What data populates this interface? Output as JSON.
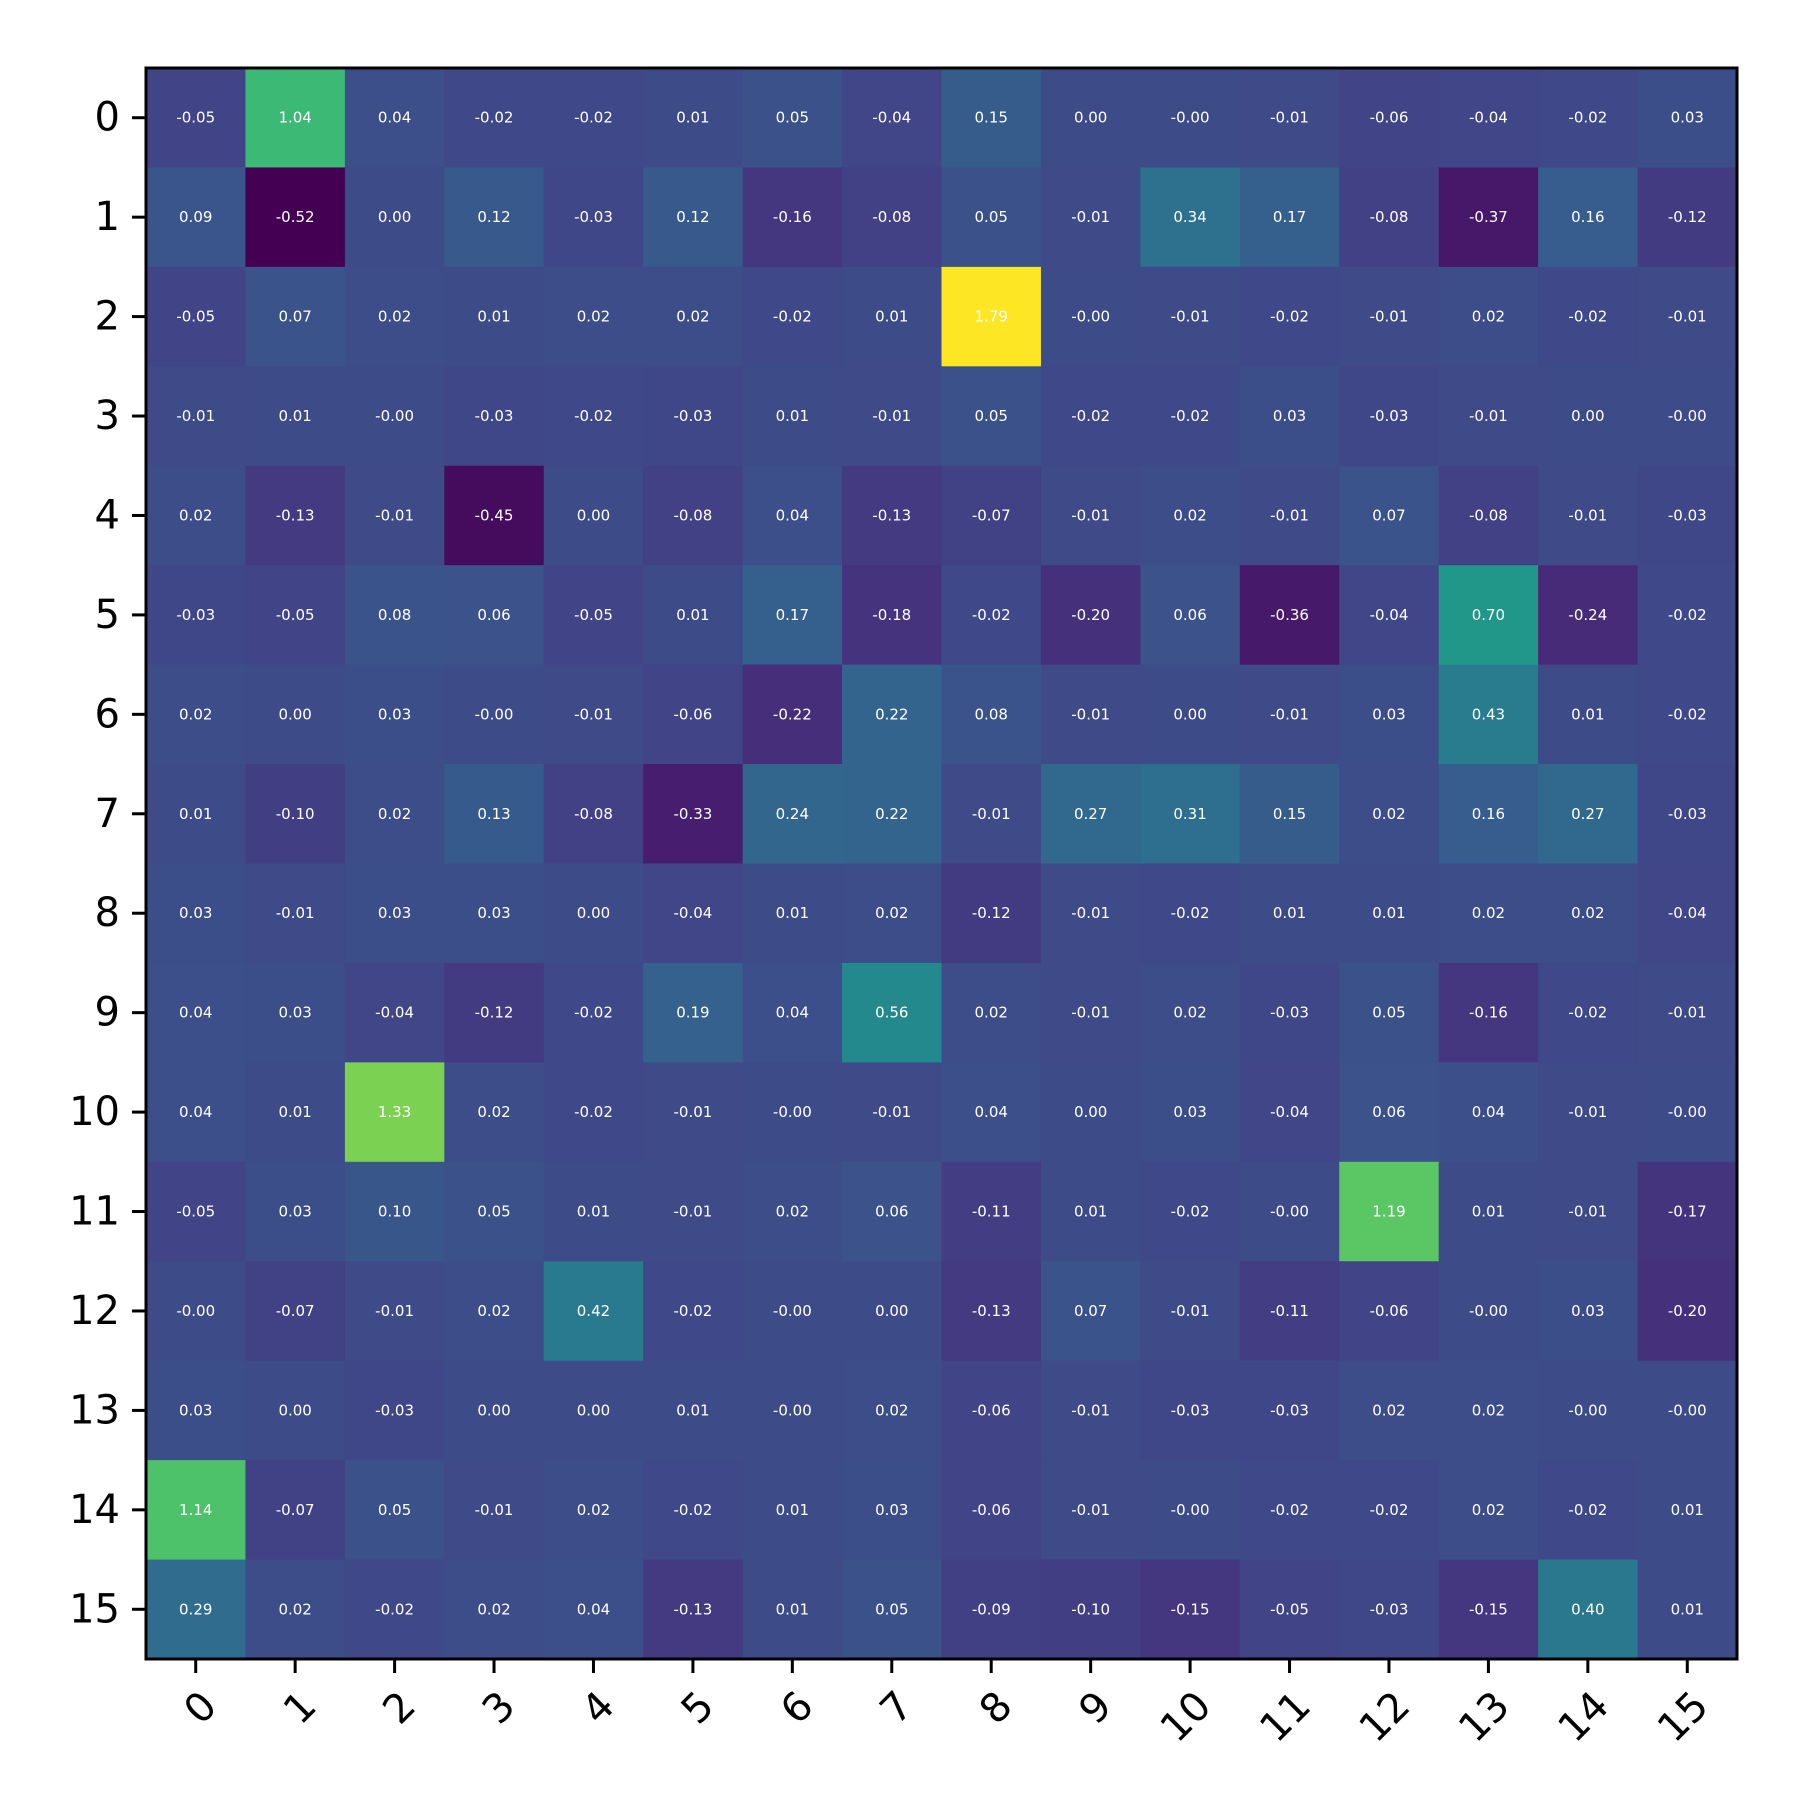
{
  "chart_data": {
    "type": "heatmap",
    "title": "",
    "xlabel": "",
    "ylabel": "",
    "x_categories": [
      "0",
      "1",
      "2",
      "3",
      "4",
      "5",
      "6",
      "7",
      "8",
      "9",
      "10",
      "11",
      "12",
      "13",
      "14",
      "15"
    ],
    "y_categories": [
      "0",
      "1",
      "2",
      "3",
      "4",
      "5",
      "6",
      "7",
      "8",
      "9",
      "10",
      "11",
      "12",
      "13",
      "14",
      "15"
    ],
    "colormap": "viridis",
    "vmin": -0.52,
    "vmax": 1.79,
    "annotations": true,
    "values": [
      [
        -0.05,
        1.04,
        0.04,
        -0.02,
        -0.02,
        0.01,
        0.05,
        -0.04,
        0.15,
        0.0,
        -0.0,
        -0.01,
        -0.06,
        -0.04,
        -0.02,
        0.03
      ],
      [
        0.09,
        -0.52,
        0.0,
        0.12,
        -0.03,
        0.12,
        -0.16,
        -0.08,
        0.05,
        -0.01,
        0.34,
        0.17,
        -0.08,
        -0.37,
        0.16,
        -0.12
      ],
      [
        -0.05,
        0.07,
        0.02,
        0.01,
        0.02,
        0.02,
        -0.02,
        0.01,
        1.79,
        -0.0,
        -0.01,
        -0.02,
        -0.01,
        0.02,
        -0.02,
        -0.01
      ],
      [
        -0.01,
        0.01,
        -0.0,
        -0.03,
        -0.02,
        -0.03,
        0.01,
        -0.01,
        0.05,
        -0.02,
        -0.02,
        0.03,
        -0.03,
        -0.01,
        0.0,
        -0.0
      ],
      [
        0.02,
        -0.13,
        -0.01,
        -0.45,
        0.0,
        -0.08,
        0.04,
        -0.13,
        -0.07,
        -0.01,
        0.02,
        -0.01,
        0.07,
        -0.08,
        -0.01,
        -0.03
      ],
      [
        -0.03,
        -0.05,
        0.08,
        0.06,
        -0.05,
        0.01,
        0.17,
        -0.18,
        -0.02,
        -0.2,
        0.06,
        -0.36,
        -0.04,
        0.7,
        -0.24,
        -0.02
      ],
      [
        0.02,
        0.0,
        0.03,
        -0.0,
        -0.01,
        -0.06,
        -0.22,
        0.22,
        0.08,
        -0.01,
        0.0,
        -0.01,
        0.03,
        0.43,
        0.01,
        -0.02
      ],
      [
        0.01,
        -0.1,
        0.02,
        0.13,
        -0.08,
        -0.33,
        0.24,
        0.22,
        -0.01,
        0.27,
        0.31,
        0.15,
        0.02,
        0.16,
        0.27,
        -0.03
      ],
      [
        0.03,
        -0.01,
        0.03,
        0.03,
        0.0,
        -0.04,
        0.01,
        0.02,
        -0.12,
        -0.01,
        -0.02,
        0.01,
        0.01,
        0.02,
        0.02,
        -0.04
      ],
      [
        0.04,
        0.03,
        -0.04,
        -0.12,
        -0.02,
        0.19,
        0.04,
        0.56,
        0.02,
        -0.01,
        0.02,
        -0.03,
        0.05,
        -0.16,
        -0.02,
        -0.01
      ],
      [
        0.04,
        0.01,
        1.33,
        0.02,
        -0.02,
        -0.01,
        -0.0,
        -0.01,
        0.04,
        0.0,
        0.03,
        -0.04,
        0.06,
        0.04,
        -0.01,
        -0.0
      ],
      [
        -0.05,
        0.03,
        0.1,
        0.05,
        0.01,
        -0.01,
        0.02,
        0.06,
        -0.11,
        0.01,
        -0.02,
        -0.0,
        1.19,
        0.01,
        -0.01,
        -0.17
      ],
      [
        -0.0,
        -0.07,
        -0.01,
        0.02,
        0.42,
        -0.02,
        -0.0,
        0.0,
        -0.13,
        0.07,
        -0.01,
        -0.11,
        -0.06,
        -0.0,
        0.03,
        -0.2
      ],
      [
        0.03,
        0.0,
        -0.03,
        0.0,
        0.0,
        0.01,
        -0.0,
        0.02,
        -0.06,
        -0.01,
        -0.03,
        -0.03,
        0.02,
        0.02,
        -0.0,
        -0.0
      ],
      [
        1.14,
        -0.07,
        0.05,
        -0.01,
        0.02,
        -0.02,
        0.01,
        0.03,
        -0.06,
        -0.01,
        -0.0,
        -0.02,
        -0.02,
        0.02,
        -0.02,
        0.01
      ],
      [
        0.29,
        0.02,
        -0.02,
        0.02,
        0.04,
        -0.13,
        0.01,
        0.05,
        -0.09,
        -0.1,
        -0.15,
        -0.05,
        -0.03,
        -0.15,
        0.4,
        0.01
      ]
    ],
    "value_labels": [
      [
        "-0.05",
        "1.04",
        "0.04",
        "-0.02",
        "-0.02",
        "0.01",
        "0.05",
        "-0.04",
        "0.15",
        "0.00",
        "-0.00",
        "-0.01",
        "-0.06",
        "-0.04",
        "-0.02",
        "0.03"
      ],
      [
        "0.09",
        "-0.52",
        "0.00",
        "0.12",
        "-0.03",
        "0.12",
        "-0.16",
        "-0.08",
        "0.05",
        "-0.01",
        "0.34",
        "0.17",
        "-0.08",
        "-0.37",
        "0.16",
        "-0.12"
      ],
      [
        "-0.05",
        "0.07",
        "0.02",
        "0.01",
        "0.02",
        "0.02",
        "-0.02",
        "0.01",
        "1.79",
        "-0.00",
        "-0.01",
        "-0.02",
        "-0.01",
        "0.02",
        "-0.02",
        "-0.01"
      ],
      [
        "-0.01",
        "0.01",
        "-0.00",
        "-0.03",
        "-0.02",
        "-0.03",
        "0.01",
        "-0.01",
        "0.05",
        "-0.02",
        "-0.02",
        "0.03",
        "-0.03",
        "-0.01",
        "0.00",
        "-0.00"
      ],
      [
        "0.02",
        "-0.13",
        "-0.01",
        "-0.45",
        "0.00",
        "-0.08",
        "0.04",
        "-0.13",
        "-0.07",
        "-0.01",
        "0.02",
        "-0.01",
        "0.07",
        "-0.08",
        "-0.01",
        "-0.03"
      ],
      [
        "-0.03",
        "-0.05",
        "0.08",
        "0.06",
        "-0.05",
        "0.01",
        "0.17",
        "-0.18",
        "-0.02",
        "-0.20",
        "0.06",
        "-0.36",
        "-0.04",
        "0.70",
        "-0.24",
        "-0.02"
      ],
      [
        "0.02",
        "0.00",
        "0.03",
        "-0.00",
        "-0.01",
        "-0.06",
        "-0.22",
        "0.22",
        "0.08",
        "-0.01",
        "0.00",
        "-0.01",
        "0.03",
        "0.43",
        "0.01",
        "-0.02"
      ],
      [
        "0.01",
        "-0.10",
        "0.02",
        "0.13",
        "-0.08",
        "-0.33",
        "0.24",
        "0.22",
        "-0.01",
        "0.27",
        "0.31",
        "0.15",
        "0.02",
        "0.16",
        "0.27",
        "-0.03"
      ],
      [
        "0.03",
        "-0.01",
        "0.03",
        "0.03",
        "0.00",
        "-0.04",
        "0.01",
        "0.02",
        "-0.12",
        "-0.01",
        "-0.02",
        "0.01",
        "0.01",
        "0.02",
        "0.02",
        "-0.04"
      ],
      [
        "0.04",
        "0.03",
        "-0.04",
        "-0.12",
        "-0.02",
        "0.19",
        "0.04",
        "0.56",
        "0.02",
        "-0.01",
        "0.02",
        "-0.03",
        "0.05",
        "-0.16",
        "-0.02",
        "-0.01"
      ],
      [
        "0.04",
        "0.01",
        "1.33",
        "0.02",
        "-0.02",
        "-0.01",
        "-0.00",
        "-0.01",
        "0.04",
        "0.00",
        "0.03",
        "-0.04",
        "0.06",
        "0.04",
        "-0.01",
        "-0.00"
      ],
      [
        "-0.05",
        "0.03",
        "0.10",
        "0.05",
        "0.01",
        "-0.01",
        "0.02",
        "0.06",
        "-0.11",
        "0.01",
        "-0.02",
        "-0.00",
        "1.19",
        "0.01",
        "-0.01",
        "-0.17"
      ],
      [
        "-0.00",
        "-0.07",
        "-0.01",
        "0.02",
        "0.42",
        "-0.02",
        "-0.00",
        "0.00",
        "-0.13",
        "0.07",
        "-0.01",
        "-0.11",
        "-0.06",
        "-0.00",
        "0.03",
        "-0.20"
      ],
      [
        "0.03",
        "0.00",
        "-0.03",
        "0.00",
        "0.00",
        "0.01",
        "-0.00",
        "0.02",
        "-0.06",
        "-0.01",
        "-0.03",
        "-0.03",
        "0.02",
        "0.02",
        "-0.00",
        "-0.00"
      ],
      [
        "1.14",
        "-0.07",
        "0.05",
        "-0.01",
        "0.02",
        "-0.02",
        "0.01",
        "0.03",
        "-0.06",
        "-0.01",
        "-0.00",
        "-0.02",
        "-0.02",
        "0.02",
        "-0.02",
        "0.01"
      ],
      [
        "0.29",
        "0.02",
        "-0.02",
        "0.02",
        "0.04",
        "-0.13",
        "0.01",
        "0.05",
        "-0.09",
        "-0.10",
        "-0.15",
        "-0.05",
        "-0.03",
        "-0.15",
        "0.40",
        "0.01"
      ]
    ]
  }
}
